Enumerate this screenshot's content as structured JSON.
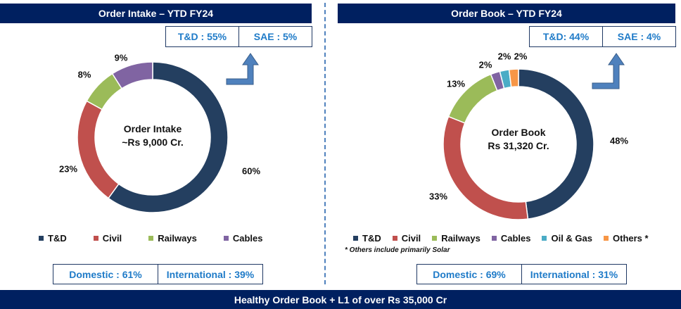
{
  "chart_data": [
    {
      "type": "pie",
      "title": "Order Intake – YTD FY24",
      "center_label": [
        "Order Intake",
        "~Rs 9,000 Cr."
      ],
      "categories": [
        "T&D",
        "Civil",
        "Railways",
        "Cables"
      ],
      "values": [
        60,
        23,
        8,
        9
      ],
      "labels": [
        "60%",
        "23%",
        "8%",
        "9%"
      ],
      "colors": [
        "#243F60",
        "#C0504D",
        "#9BBB59",
        "#8064A2"
      ],
      "sub_split": [
        "T&D : 55%",
        "SAE : 5%"
      ],
      "geo_split": [
        "Domestic : 61%",
        "International : 39%"
      ]
    },
    {
      "type": "pie",
      "title": "Order Book – YTD FY24",
      "center_label": [
        "Order Book",
        "Rs 31,320 Cr."
      ],
      "categories": [
        "T&D",
        "Civil",
        "Railways",
        "Cables",
        "Oil & Gas",
        "Others *"
      ],
      "values": [
        48,
        33,
        13,
        2,
        2,
        2
      ],
      "labels": [
        "48%",
        "33%",
        "13%",
        "2%",
        "2%",
        "2%"
      ],
      "colors": [
        "#243F60",
        "#C0504D",
        "#9BBB59",
        "#8064A2",
        "#4BACC6",
        "#F79646"
      ],
      "note": "* Others include primarily Solar",
      "sub_split": [
        "T&D: 44%",
        "SAE : 4%"
      ],
      "geo_split": [
        "Domestic : 69%",
        "International : 31%"
      ]
    }
  ],
  "footer": "Healthy Order Book + L1 of over Rs 35,000 Cr"
}
